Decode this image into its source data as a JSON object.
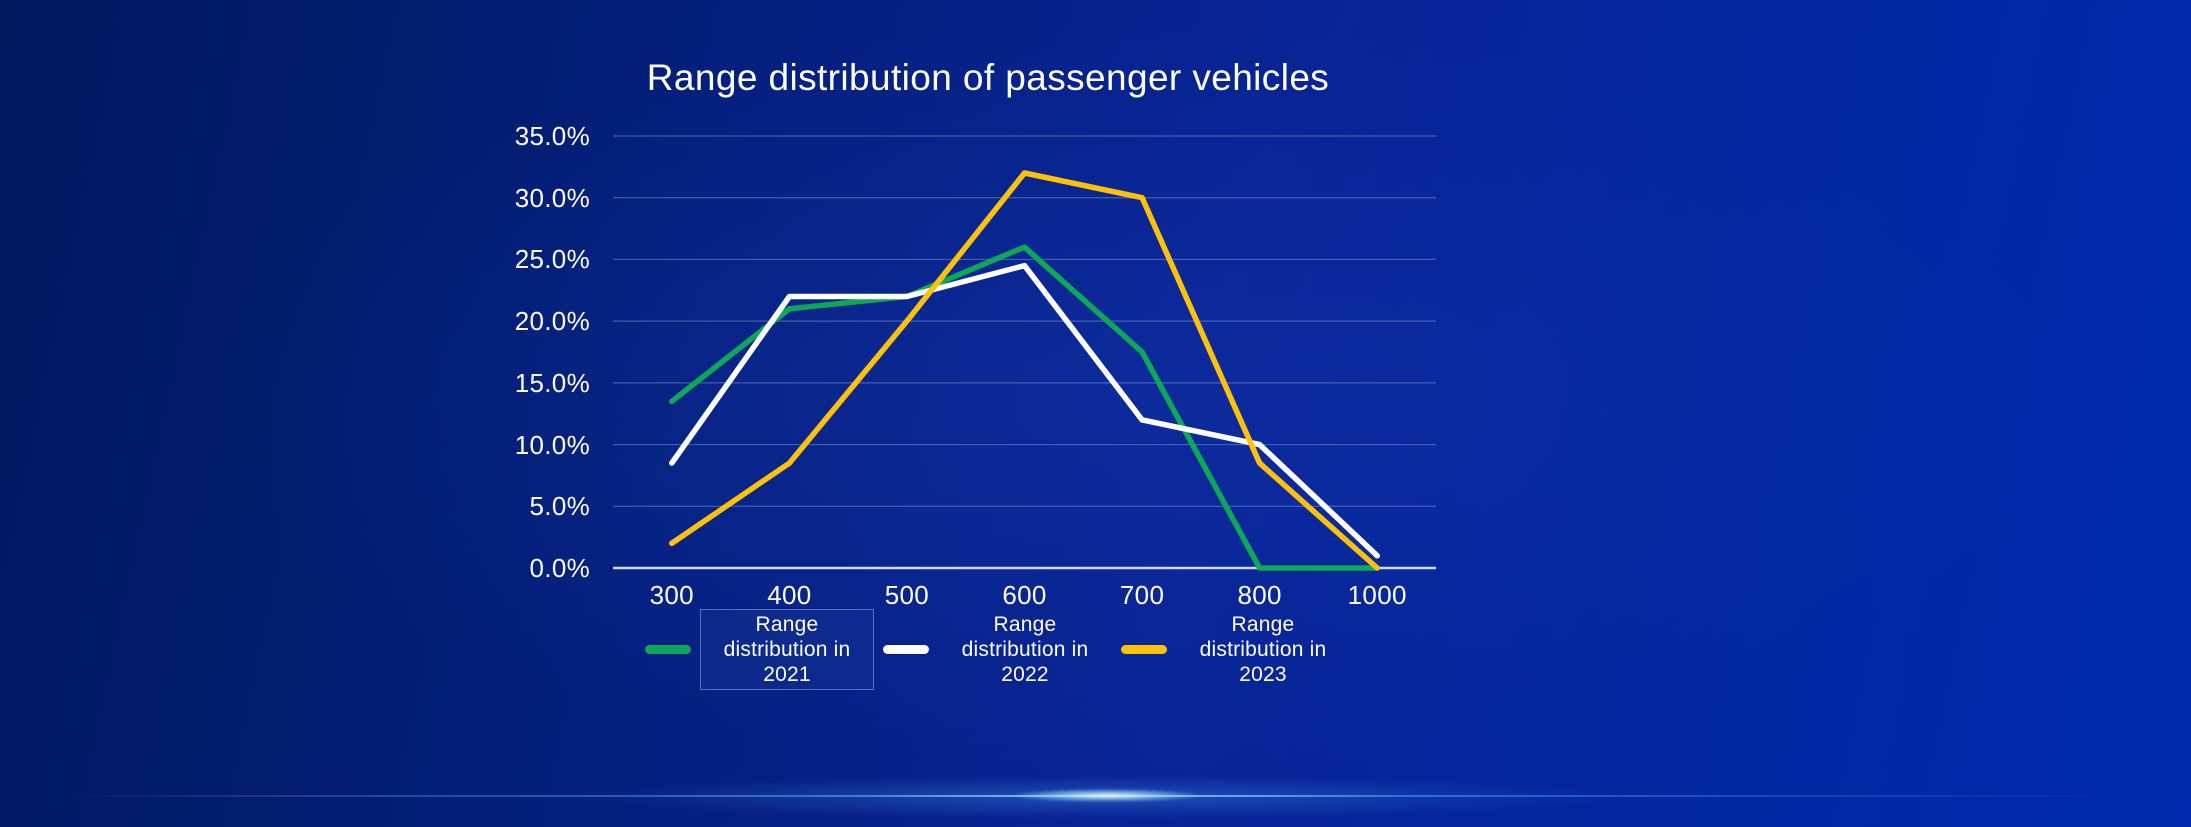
{
  "background": {
    "base_dark": "#00175c",
    "base_bright": "#0029ad",
    "glow_color": "#8cd2ff"
  },
  "chart_data": {
    "type": "line",
    "title": "Range distribution of passenger vehicles",
    "categories": [
      "300",
      "400",
      "500",
      "600",
      "700",
      "800",
      "1000"
    ],
    "series": [
      {
        "name": "Range distribution in 2021",
        "color": "#0ca858",
        "values": [
          13.5,
          21,
          22,
          26,
          17.5,
          0,
          0
        ]
      },
      {
        "name": "Range distribution in 2022",
        "color": "#ffffff",
        "values": [
          8.5,
          22,
          22,
          24.5,
          12,
          10,
          1
        ]
      },
      {
        "name": "Range distribution in 2023",
        "color": "#ffc208",
        "values": [
          2,
          8.5,
          20,
          32,
          30,
          8.5,
          0
        ]
      }
    ],
    "xlabel": "",
    "ylabel": "",
    "ylim": [
      0,
      35
    ],
    "ytick_step": 5,
    "yticks": [
      "0.0%",
      "5.0%",
      "10.0%",
      "15.0%",
      "20.0%",
      "25.0%",
      "30.0%",
      "35.0%"
    ],
    "grid": true,
    "legend_position": "bottom"
  },
  "legend": {
    "highlighted_index": 0
  }
}
